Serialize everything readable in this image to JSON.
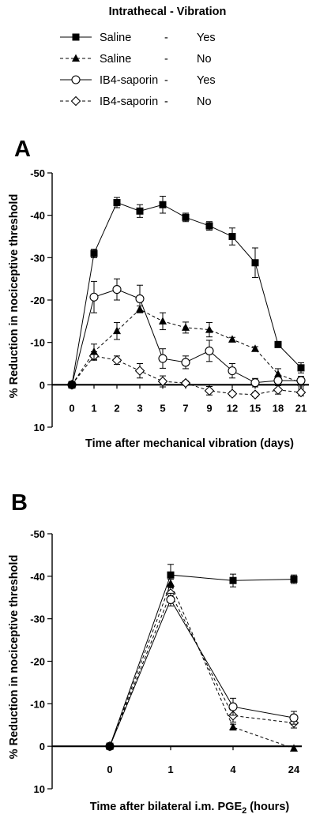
{
  "legend": {
    "title": "Intrathecal - Vibration",
    "entries": [
      {
        "treatment": "Saline",
        "dash": "-",
        "vibration": "Yes",
        "marker": "square-filled",
        "line": "solid"
      },
      {
        "treatment": "Saline",
        "dash": "-",
        "vibration": "No",
        "marker": "triangle-filled",
        "line": "dashed"
      },
      {
        "treatment": "IB4-saporin",
        "dash": "-",
        "vibration": "Yes",
        "marker": "circle-open",
        "line": "solid"
      },
      {
        "treatment": "IB4-saporin",
        "dash": "-",
        "vibration": "No",
        "marker": "diamond-open",
        "line": "dashed"
      }
    ]
  },
  "chart_data": [
    {
      "panel_label": "A",
      "type": "line",
      "xlabel": "Time after mechanical vibration (days)",
      "ylabel": "% Reduction in nociceptive threshold",
      "categories": [
        "0",
        "1",
        "2",
        "3",
        "5",
        "7",
        "9",
        "12",
        "15",
        "18",
        "21"
      ],
      "ylim": [
        10,
        -50
      ],
      "yticks": [
        10,
        0,
        -10,
        -20,
        -30,
        -40,
        -50
      ],
      "ytick_labels": [
        "10",
        "0",
        "-10",
        "-20",
        "-30",
        "-40",
        "-50"
      ],
      "series": [
        {
          "legend_index": 0,
          "values": [
            0,
            -31,
            -43,
            -41,
            -42.5,
            -39.5,
            -37.5,
            -35,
            -28.8,
            -9.5,
            -4
          ],
          "errors": [
            0.8,
            1,
            1.2,
            1.5,
            2,
            1,
            1,
            2,
            3.5,
            0.5,
            1.2
          ]
        },
        {
          "legend_index": 1,
          "values": [
            0,
            -7.8,
            -12.7,
            -17.8,
            -15,
            -13.5,
            -13,
            -10.7,
            -8.5,
            -2.5,
            -0.5
          ],
          "errors": [
            0.5,
            1.8,
            2,
            0.8,
            2,
            1.3,
            1.7,
            0.5,
            0.5,
            1.3,
            1
          ]
        },
        {
          "legend_index": 2,
          "values": [
            0,
            -20.7,
            -22.5,
            -20.3,
            -6.2,
            -5.3,
            -8,
            -3.3,
            -0.5,
            -1,
            -1
          ],
          "errors": [
            0.5,
            3.7,
            2.5,
            3.2,
            2.3,
            1.5,
            2.5,
            1.7,
            1,
            1,
            1
          ]
        },
        {
          "legend_index": 3,
          "values": [
            0,
            -6.8,
            -5.8,
            -3.3,
            -0.8,
            -0.4,
            1.4,
            2.1,
            2.3,
            1.2,
            1.8
          ],
          "errors": [
            0.5,
            1,
            1,
            1.7,
            1.3,
            0.5,
            1,
            0.5,
            0.5,
            1,
            0.8
          ]
        }
      ]
    },
    {
      "panel_label": "B",
      "type": "line",
      "xlabel_main": "Time after bilateral i.m. PGE",
      "xlabel_sub": "2",
      "xlabel_tail": " (hours)",
      "ylabel": "% Reduction in nociceptive threshold",
      "categories": [
        "0",
        "1",
        "4",
        "24"
      ],
      "ylim": [
        10,
        -50
      ],
      "yticks": [
        10,
        0,
        -10,
        -20,
        -30,
        -40,
        -50
      ],
      "ytick_labels": [
        "10",
        "0",
        "-10",
        "-20",
        "-30",
        "-40",
        "-50"
      ],
      "series": [
        {
          "legend_index": 0,
          "values": [
            0,
            -40.3,
            -39,
            -39.3
          ],
          "errors": [
            0.5,
            2.5,
            1.5,
            1
          ]
        },
        {
          "legend_index": 1,
          "values": [
            0,
            -38.3,
            -4.5,
            0.5
          ],
          "errors": [
            0.5,
            1,
            0.7,
            0.5
          ]
        },
        {
          "legend_index": 2,
          "values": [
            0,
            -34.5,
            -9.3,
            -6.7
          ],
          "errors": [
            0.5,
            1.5,
            2,
            1.5
          ]
        },
        {
          "legend_index": 3,
          "values": [
            0,
            -36,
            -7.2,
            -5.5
          ],
          "errors": [
            0.5,
            1.5,
            1.5,
            1.2
          ]
        }
      ]
    }
  ]
}
